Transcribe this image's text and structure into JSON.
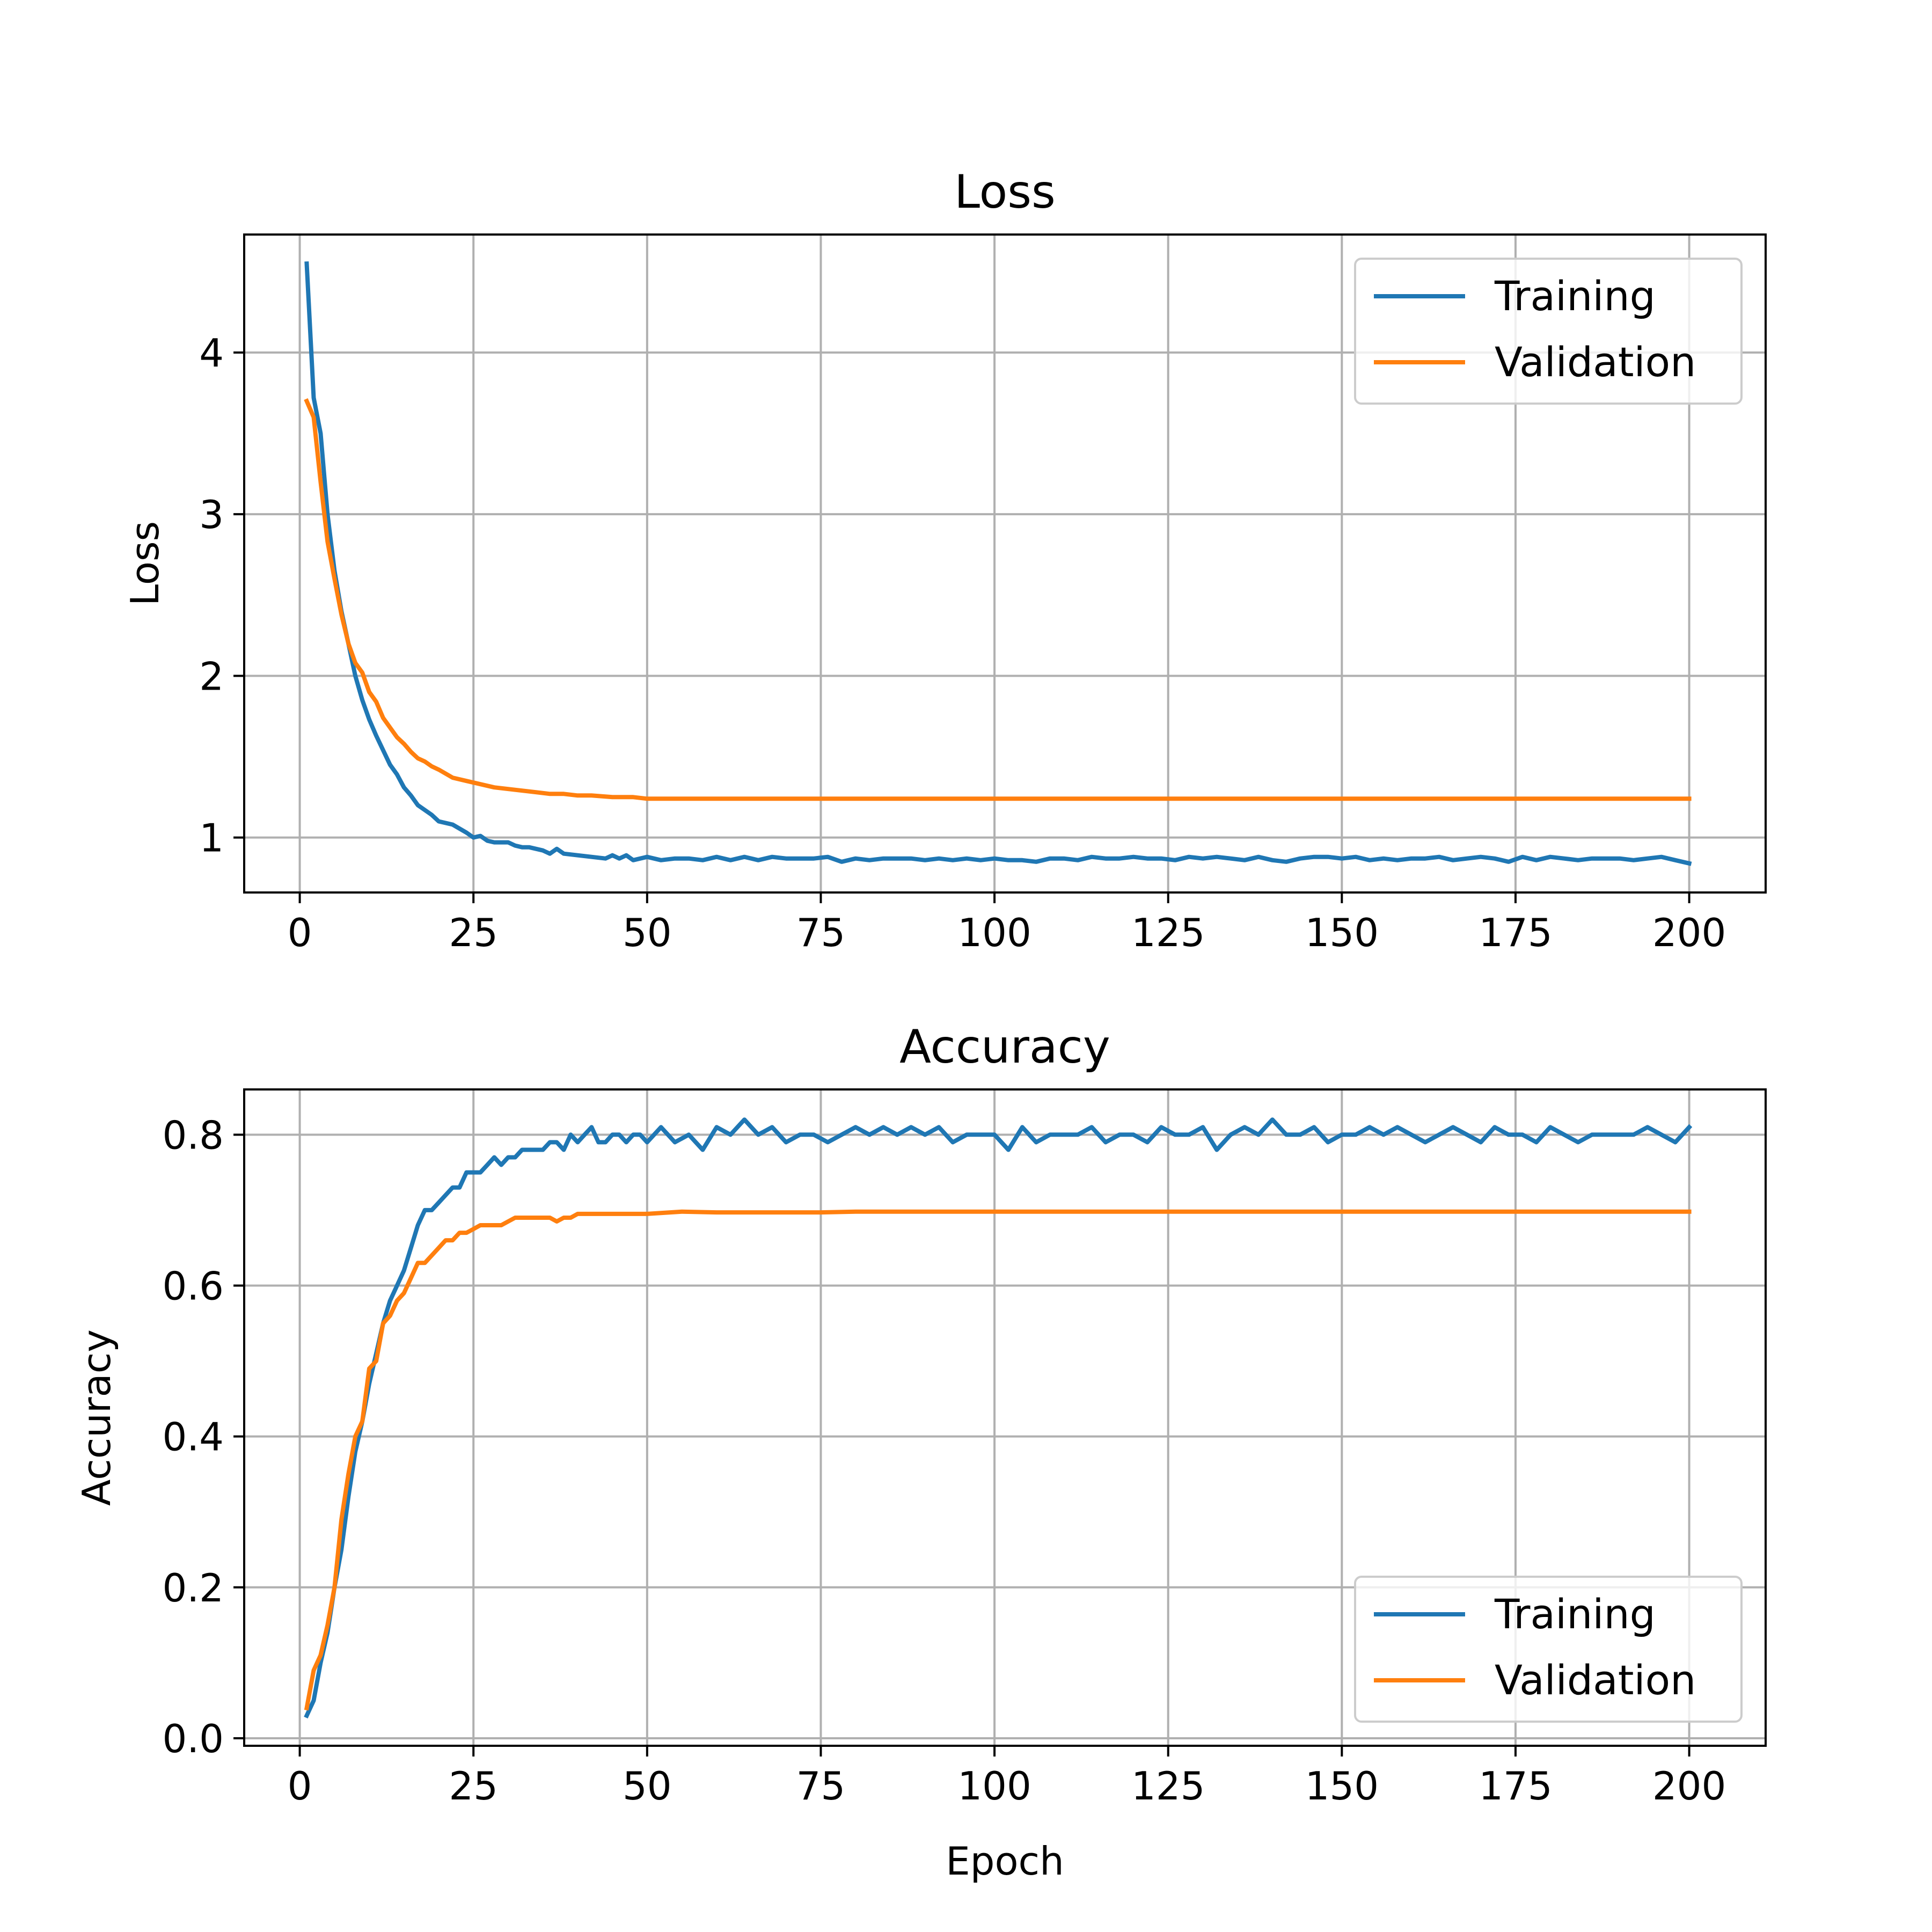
{
  "colors": {
    "training": "#1f77b4",
    "validation": "#ff7f0e",
    "grid": "#b0b0b0"
  },
  "chart_data": [
    {
      "type": "line",
      "title": "Loss",
      "xlabel": "",
      "ylabel": "Loss",
      "xlim": [
        -8,
        211
      ],
      "ylim": [
        0.66,
        4.73
      ],
      "xticks": [
        0,
        25,
        50,
        75,
        100,
        125,
        150,
        175,
        200
      ],
      "xtick_labels": [
        "0",
        "25",
        "50",
        "75",
        "100",
        "125",
        "150",
        "175",
        "200"
      ],
      "yticks": [
        1,
        2,
        3,
        4
      ],
      "ytick_labels": [
        "1",
        "2",
        "3",
        "4"
      ],
      "grid": true,
      "legend": "top-right",
      "series": [
        {
          "name": "Training",
          "color": "#1f77b4",
          "x": [
            1,
            2,
            3,
            4,
            5,
            6,
            7,
            8,
            9,
            10,
            11,
            12,
            13,
            14,
            15,
            16,
            17,
            18,
            19,
            20,
            22,
            24,
            25,
            26,
            27,
            28,
            30,
            31,
            32,
            33,
            35,
            36,
            37,
            38,
            40,
            42,
            44,
            45,
            46,
            47,
            48,
            50,
            52,
            54,
            56,
            58,
            60,
            62,
            64,
            66,
            68,
            70,
            72,
            74,
            76,
            78,
            80,
            82,
            84,
            86,
            88,
            90,
            92,
            94,
            96,
            98,
            100,
            102,
            104,
            106,
            108,
            110,
            112,
            114,
            116,
            118,
            120,
            122,
            124,
            126,
            128,
            130,
            132,
            134,
            136,
            138,
            140,
            142,
            144,
            146,
            148,
            150,
            152,
            154,
            156,
            158,
            160,
            162,
            164,
            166,
            168,
            170,
            172,
            174,
            176,
            178,
            180,
            182,
            184,
            186,
            188,
            190,
            192,
            194,
            196,
            198,
            200
          ],
          "y": [
            4.55,
            3.72,
            3.5,
            3.0,
            2.65,
            2.4,
            2.2,
            2.0,
            1.85,
            1.73,
            1.63,
            1.54,
            1.45,
            1.39,
            1.31,
            1.26,
            1.2,
            1.17,
            1.14,
            1.1,
            1.08,
            1.03,
            1.0,
            1.01,
            0.98,
            0.97,
            0.97,
            0.95,
            0.94,
            0.94,
            0.92,
            0.9,
            0.93,
            0.9,
            0.89,
            0.88,
            0.87,
            0.89,
            0.87,
            0.89,
            0.86,
            0.88,
            0.86,
            0.87,
            0.87,
            0.86,
            0.88,
            0.86,
            0.88,
            0.86,
            0.88,
            0.87,
            0.87,
            0.87,
            0.88,
            0.85,
            0.87,
            0.86,
            0.87,
            0.87,
            0.87,
            0.86,
            0.87,
            0.86,
            0.87,
            0.86,
            0.87,
            0.86,
            0.86,
            0.85,
            0.87,
            0.87,
            0.86,
            0.88,
            0.87,
            0.87,
            0.88,
            0.87,
            0.87,
            0.86,
            0.88,
            0.87,
            0.88,
            0.87,
            0.86,
            0.88,
            0.86,
            0.85,
            0.87,
            0.88,
            0.88,
            0.87,
            0.88,
            0.86,
            0.87,
            0.86,
            0.87,
            0.87,
            0.88,
            0.86,
            0.87,
            0.88,
            0.87,
            0.85,
            0.88,
            0.86,
            0.88,
            0.87,
            0.86,
            0.87,
            0.87,
            0.87,
            0.86,
            0.87,
            0.88,
            0.86,
            0.84
          ]
        },
        {
          "name": "Validation",
          "color": "#ff7f0e",
          "x": [
            1,
            2,
            3,
            4,
            5,
            6,
            7,
            8,
            9,
            10,
            11,
            12,
            13,
            14,
            15,
            16,
            17,
            18,
            19,
            20,
            22,
            24,
            26,
            28,
            30,
            32,
            34,
            36,
            38,
            40,
            42,
            45,
            48,
            50,
            55,
            60,
            65,
            70,
            75,
            80,
            90,
            100,
            110,
            120,
            130,
            140,
            150,
            160,
            170,
            180,
            190,
            200
          ],
          "y": [
            3.7,
            3.6,
            3.2,
            2.83,
            2.6,
            2.38,
            2.2,
            2.08,
            2.02,
            1.9,
            1.84,
            1.74,
            1.68,
            1.62,
            1.58,
            1.53,
            1.49,
            1.47,
            1.44,
            1.42,
            1.37,
            1.35,
            1.33,
            1.31,
            1.3,
            1.29,
            1.28,
            1.27,
            1.27,
            1.26,
            1.26,
            1.25,
            1.25,
            1.24,
            1.24,
            1.24,
            1.24,
            1.24,
            1.24,
            1.24,
            1.24,
            1.24,
            1.24,
            1.24,
            1.24,
            1.24,
            1.24,
            1.24,
            1.24,
            1.24,
            1.24,
            1.24
          ]
        }
      ]
    },
    {
      "type": "line",
      "title": "Accuracy",
      "xlabel": "Epoch",
      "ylabel": "Accuracy",
      "xlim": [
        -8,
        211
      ],
      "ylim": [
        -0.01,
        0.86
      ],
      "xticks": [
        0,
        25,
        50,
        75,
        100,
        125,
        150,
        175,
        200
      ],
      "xtick_labels": [
        "0",
        "25",
        "50",
        "75",
        "100",
        "125",
        "150",
        "175",
        "200"
      ],
      "yticks": [
        0.0,
        0.2,
        0.4,
        0.6,
        0.8
      ],
      "ytick_labels": [
        "0.0",
        "0.2",
        "0.4",
        "0.6",
        "0.8"
      ],
      "grid": true,
      "legend": "bottom-right",
      "series": [
        {
          "name": "Training",
          "color": "#1f77b4",
          "x": [
            1,
            2,
            3,
            4,
            5,
            6,
            7,
            8,
            9,
            10,
            11,
            12,
            13,
            14,
            15,
            16,
            17,
            18,
            19,
            20,
            21,
            22,
            23,
            24,
            25,
            26,
            27,
            28,
            29,
            30,
            31,
            32,
            33,
            34,
            35,
            36,
            37,
            38,
            39,
            40,
            41,
            42,
            43,
            44,
            45,
            46,
            47,
            48,
            49,
            50,
            52,
            54,
            56,
            58,
            60,
            62,
            64,
            66,
            68,
            70,
            72,
            74,
            76,
            78,
            80,
            82,
            84,
            86,
            88,
            90,
            92,
            94,
            96,
            98,
            100,
            102,
            104,
            106,
            108,
            110,
            112,
            114,
            116,
            118,
            120,
            122,
            124,
            126,
            128,
            130,
            132,
            134,
            136,
            138,
            140,
            142,
            144,
            146,
            148,
            150,
            152,
            154,
            156,
            158,
            160,
            162,
            164,
            166,
            168,
            170,
            172,
            174,
            176,
            178,
            180,
            182,
            184,
            186,
            188,
            190,
            192,
            194,
            196,
            198,
            200
          ],
          "y": [
            0.03,
            0.05,
            0.1,
            0.14,
            0.2,
            0.25,
            0.32,
            0.38,
            0.42,
            0.47,
            0.51,
            0.55,
            0.58,
            0.6,
            0.62,
            0.65,
            0.68,
            0.7,
            0.7,
            0.71,
            0.72,
            0.73,
            0.73,
            0.75,
            0.75,
            0.75,
            0.76,
            0.77,
            0.76,
            0.77,
            0.77,
            0.78,
            0.78,
            0.78,
            0.78,
            0.79,
            0.79,
            0.78,
            0.8,
            0.79,
            0.8,
            0.81,
            0.79,
            0.79,
            0.8,
            0.8,
            0.79,
            0.8,
            0.8,
            0.79,
            0.81,
            0.79,
            0.8,
            0.78,
            0.81,
            0.8,
            0.82,
            0.8,
            0.81,
            0.79,
            0.8,
            0.8,
            0.79,
            0.8,
            0.81,
            0.8,
            0.81,
            0.8,
            0.81,
            0.8,
            0.81,
            0.79,
            0.8,
            0.8,
            0.8,
            0.78,
            0.81,
            0.79,
            0.8,
            0.8,
            0.8,
            0.81,
            0.79,
            0.8,
            0.8,
            0.79,
            0.81,
            0.8,
            0.8,
            0.81,
            0.78,
            0.8,
            0.81,
            0.8,
            0.82,
            0.8,
            0.8,
            0.81,
            0.79,
            0.8,
            0.8,
            0.81,
            0.8,
            0.81,
            0.8,
            0.79,
            0.8,
            0.81,
            0.8,
            0.79,
            0.81,
            0.8,
            0.8,
            0.79,
            0.81,
            0.8,
            0.79,
            0.8,
            0.8,
            0.8,
            0.8,
            0.81,
            0.8,
            0.79,
            0.81
          ]
        },
        {
          "name": "Validation",
          "color": "#ff7f0e",
          "x": [
            1,
            2,
            3,
            4,
            5,
            6,
            7,
            8,
            9,
            10,
            11,
            12,
            13,
            14,
            15,
            16,
            17,
            18,
            19,
            20,
            21,
            22,
            23,
            24,
            25,
            26,
            27,
            28,
            29,
            30,
            31,
            32,
            33,
            34,
            35,
            36,
            37,
            38,
            39,
            40,
            41,
            42,
            44,
            46,
            48,
            50,
            55,
            60,
            65,
            70,
            75,
            80,
            90,
            100,
            110,
            120,
            130,
            140,
            150,
            160,
            170,
            180,
            190,
            200
          ],
          "y": [
            0.04,
            0.09,
            0.11,
            0.15,
            0.2,
            0.29,
            0.35,
            0.4,
            0.42,
            0.49,
            0.5,
            0.55,
            0.56,
            0.58,
            0.59,
            0.61,
            0.63,
            0.63,
            0.64,
            0.65,
            0.66,
            0.66,
            0.67,
            0.67,
            0.675,
            0.68,
            0.68,
            0.68,
            0.68,
            0.685,
            0.69,
            0.69,
            0.69,
            0.69,
            0.69,
            0.69,
            0.685,
            0.69,
            0.69,
            0.695,
            0.695,
            0.695,
            0.695,
            0.695,
            0.695,
            0.695,
            0.698,
            0.697,
            0.697,
            0.697,
            0.697,
            0.698,
            0.698,
            0.698,
            0.698,
            0.698,
            0.698,
            0.698,
            0.698,
            0.698,
            0.698,
            0.698,
            0.698,
            0.698
          ]
        }
      ]
    }
  ]
}
